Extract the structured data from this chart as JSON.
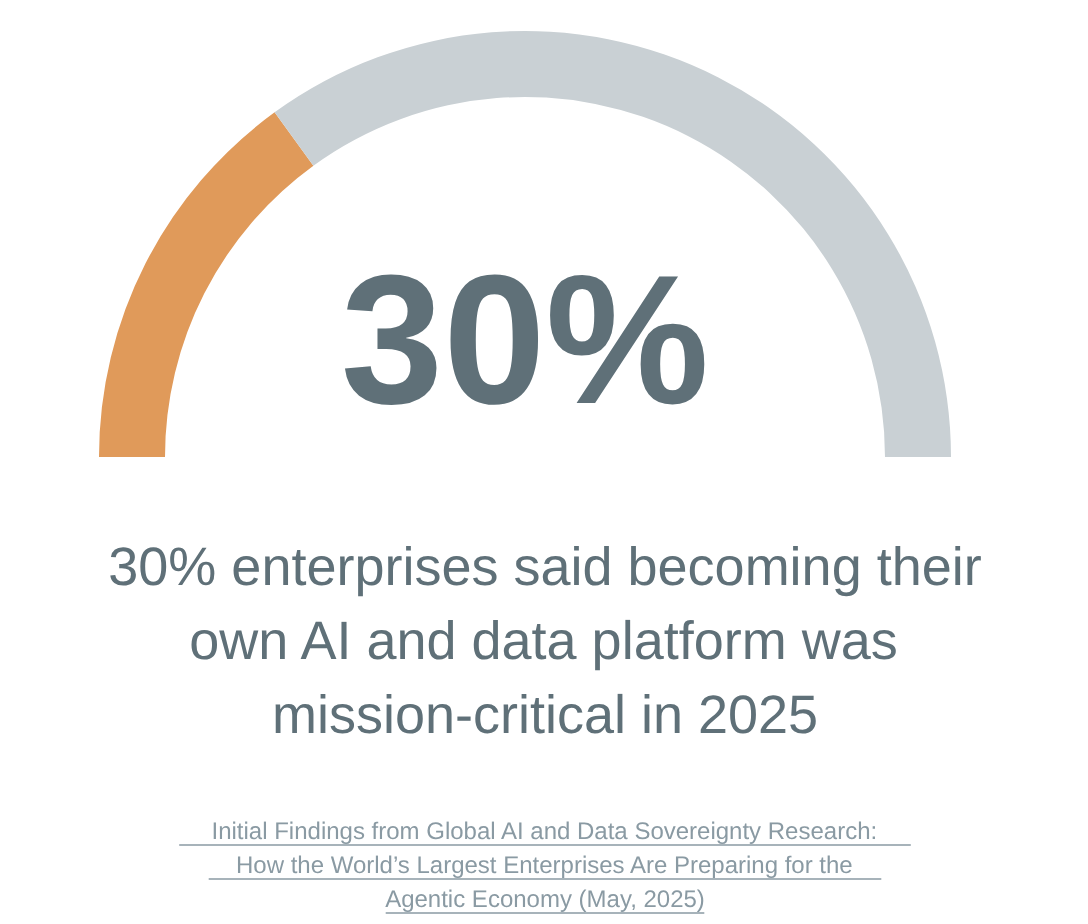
{
  "chart_data": {
    "type": "donut",
    "title": "30% enterprises said becoming their own AI and data platform was mission-critical in 2025",
    "categories": [
      null,
      null
    ],
    "values": [
      30,
      70
    ],
    "colors": [
      "#e09a5a",
      "#c9d0d4"
    ],
    "annotations": [
      "30%",
      "Initial Findings from Global AI and Data Sovereignty Research: How the World’s Largest Enterprises Are Preparing for the Agentic Economy (May, 2025)"
    ]
  }
}
